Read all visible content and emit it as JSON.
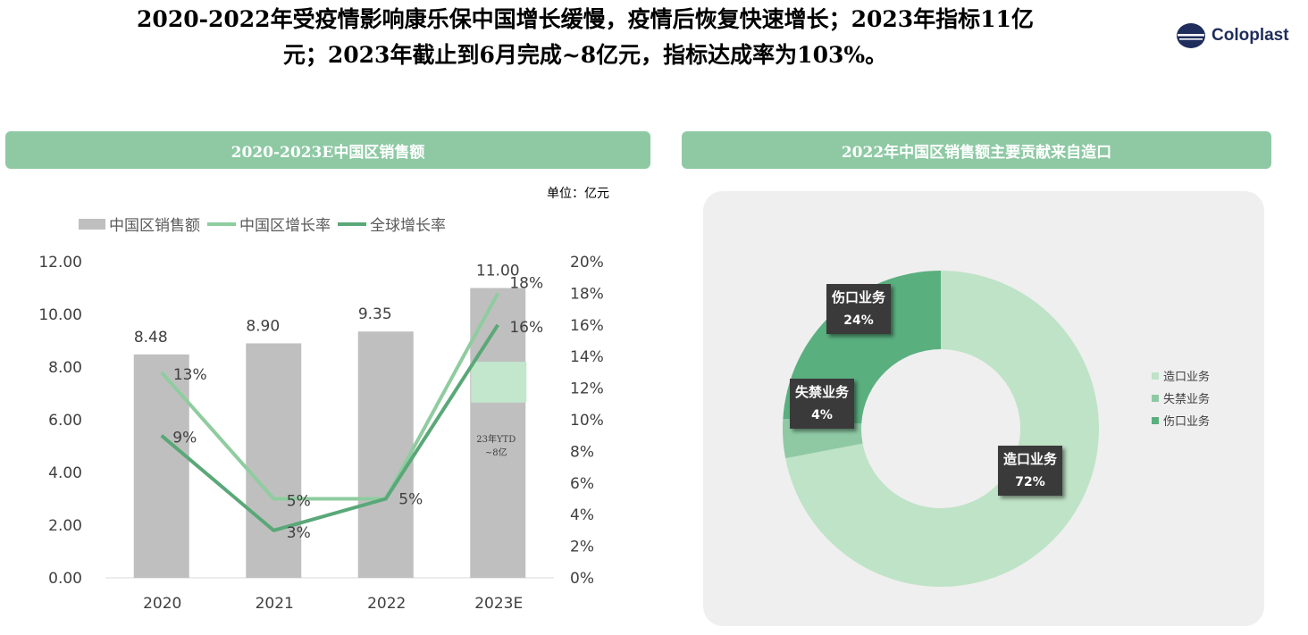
{
  "headline": {
    "line1": "2020-2022年受疫情影响康乐保中国增长缓慢，疫情后恢复快速增长；2023年指标11亿",
    "line2": "元；2023年截止到6月完成~8亿元，指标达成率为103%。"
  },
  "logo": {
    "text": "Coloplast"
  },
  "left_panel": {
    "header": "2020-2023E中国区销售额",
    "unit": "单位：亿元"
  },
  "right_panel": {
    "header": "2022年中国区销售额主要贡献来自造口"
  },
  "colors": {
    "bar": "#bfbfbf",
    "china_growth": "#8fcc9f",
    "global_growth": "#5aa878",
    "ytd_box": "#c3e7cd",
    "ostomy": "#bfe3c6",
    "continence": "#8ec9a4",
    "wound": "#5aaf7f"
  },
  "chart_data": [
    {
      "type": "bar",
      "title": "2020-2023E中国区销售额",
      "categories": [
        "2020",
        "2021",
        "2022",
        "2023E"
      ],
      "y_ticks": [
        "0.00",
        "2.00",
        "4.00",
        "6.00",
        "8.00",
        "10.00",
        "12.00"
      ],
      "y2_ticks": [
        "0%",
        "2%",
        "4%",
        "6%",
        "8%",
        "10%",
        "12%",
        "14%",
        "16%",
        "18%",
        "20%"
      ],
      "ylim": [
        0,
        12
      ],
      "y2lim": [
        0,
        20
      ],
      "legend_position": "top-left",
      "bars": {
        "name": "中国区销售额",
        "values": [
          8.48,
          8.9,
          9.35,
          11.0
        ],
        "labels": [
          "8.48",
          "8.90",
          "9.35",
          "11.00"
        ]
      },
      "lines": [
        {
          "name": "中国区增长率",
          "values": [
            13,
            5,
            5,
            18
          ],
          "labels": [
            "13%",
            "5%",
            "",
            "18%"
          ]
        },
        {
          "name": "全球增长率",
          "values": [
            9,
            3,
            5,
            16
          ],
          "labels": [
            "9%",
            "3%",
            "5%",
            "16%"
          ]
        }
      ],
      "annotation": {
        "category": "2023E",
        "line1": "23年YTD",
        "line2": "~8亿"
      }
    },
    {
      "type": "pie",
      "title": "2022年中国区销售额主要贡献来自造口",
      "donut": true,
      "legend_position": "right",
      "slices": [
        {
          "name": "造口业务",
          "value": 72,
          "label": "72%"
        },
        {
          "name": "失禁业务",
          "value": 4,
          "label": "4%"
        },
        {
          "name": "伤口业务",
          "value": 24,
          "label": "24%"
        }
      ]
    }
  ]
}
